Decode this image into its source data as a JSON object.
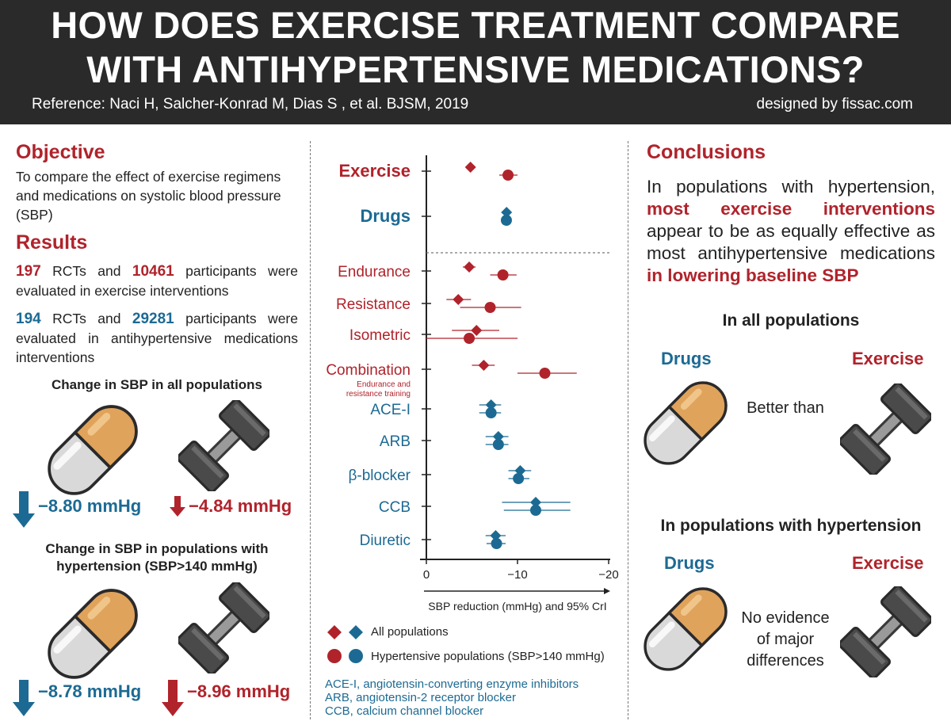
{
  "header": {
    "title_line1": "HOW DOES EXERCISE TREATMENT COMPARE",
    "title_line2": "WITH ANTIHYPERTENSIVE MEDICATIONS?",
    "reference": "Reference: Naci H, Salcher-Konrad M, Dias S , et al. BJSM, 2019",
    "designed_by": "designed by fissac.com"
  },
  "left": {
    "objective_title": "Objective",
    "objective_text": "To compare the effect of exercise regimens and medications on systolic blood pressure (SBP)",
    "results_title": "Results",
    "exercise_rcts": "197",
    "exercise_rcts_label": " RCTs and ",
    "exercise_participants": "10461",
    "exercise_text": " participants were evaluated in exercise interventions",
    "drug_rcts": "194",
    "drug_rcts_label": " RCTs and ",
    "drug_participants": "29281",
    "drug_text": " participants were evaluated in antihypertensive medications interventions",
    "all_pop_heading": "Change in SBP in all populations",
    "all_drug_value": "−8.80 mmHg",
    "all_exercise_value": "−4.84 mmHg",
    "htn_heading": "Change in SBP in populations with hypertension (SBP>140 mmHg)",
    "htn_drug_value": "−8.78 mmHg",
    "htn_exercise_value": "−8.96 mmHg"
  },
  "chart_data": {
    "type": "scatter",
    "title": "",
    "xlabel": "SBP reduction (mmHg) and 95% CrI",
    "xlim": [
      0,
      -20
    ],
    "xticks": [
      "0",
      "−10",
      "−20"
    ],
    "rows": [
      {
        "label": "Exercise",
        "group": "exercise",
        "bold": true,
        "all": -4.84,
        "all_ci": [
          -4.84,
          -4.84
        ],
        "htn": -8.96,
        "htn_ci": [
          -8.0,
          -10.0
        ]
      },
      {
        "label": "Drugs",
        "group": "drug",
        "bold": true,
        "all": -8.8,
        "all_ci": [
          -8.8,
          -8.8
        ],
        "htn": -8.78,
        "htn_ci": [
          -8.3,
          -9.3
        ]
      },
      {
        "label": "Endurance",
        "group": "exercise",
        "all": -4.7,
        "all_ci": [
          -4.0,
          -5.4
        ],
        "htn": -8.4,
        "htn_ci": [
          -7.0,
          -9.9
        ]
      },
      {
        "label": "Resistance",
        "group": "exercise",
        "all": -3.5,
        "all_ci": [
          -2.2,
          -4.9
        ],
        "htn": -7.0,
        "htn_ci": [
          -3.7,
          -10.4
        ]
      },
      {
        "label": "Isometric",
        "group": "exercise",
        "all": -5.5,
        "all_ci": [
          -2.8,
          -8.0
        ],
        "htn": -4.7,
        "htn_ci": [
          0.0,
          -10.0
        ]
      },
      {
        "label": "Combination",
        "sublabel": "Endurance and resistance training",
        "group": "exercise",
        "all": -6.3,
        "all_ci": [
          -5.0,
          -7.5
        ],
        "htn": -13.0,
        "htn_ci": [
          -10.0,
          -16.5
        ]
      },
      {
        "label": "ACE-I",
        "group": "drug",
        "all": -7.1,
        "all_ci": [
          -5.8,
          -8.2
        ],
        "htn": -7.1,
        "htn_ci": [
          -5.8,
          -8.2
        ]
      },
      {
        "label": "ARB",
        "group": "drug",
        "all": -7.9,
        "all_ci": [
          -6.5,
          -9.0
        ],
        "htn": -7.9,
        "htn_ci": [
          -6.5,
          -9.0
        ]
      },
      {
        "label": "β-blocker",
        "group": "drug",
        "all": -10.3,
        "all_ci": [
          -9.0,
          -11.5
        ],
        "htn": -10.1,
        "htn_ci": [
          -9.0,
          -11.3
        ]
      },
      {
        "label": "CCB",
        "group": "drug",
        "all": -12.0,
        "all_ci": [
          -8.3,
          -15.8
        ],
        "htn": -12.0,
        "htn_ci": [
          -8.5,
          -15.8
        ]
      },
      {
        "label": "Diuretic",
        "group": "drug",
        "all": -7.6,
        "all_ci": [
          -6.5,
          -8.7
        ],
        "htn": -7.7,
        "htn_ci": [
          -6.6,
          -8.7
        ]
      }
    ],
    "legend": [
      "All populations",
      "Hypertensive populations (SBP>140 mmHg)"
    ]
  },
  "abbreviations": [
    "ACE-I, angiotensin-converting enzyme inhibitors",
    "ARB, angiotensin-2 receptor blocker",
    "CCB, calcium channel blocker"
  ],
  "right": {
    "conclusions_title": "Conclusions",
    "text_1": "In populations with hypertension, ",
    "text_hl1": "most exercise interventions",
    "text_2": " appear to be as equally effective as most antihypertensive medications ",
    "text_hl2": "in lowering baseline SBP",
    "all_pop_heading": "In all populations",
    "drugs_label": "Drugs",
    "exercise_label": "Exercise",
    "better_than": "Better than",
    "htn_heading": "In populations with hypertension",
    "drugs_label2": "Drugs",
    "exercise_label2": "Exercise",
    "no_evidence": "No evidence of major differences"
  },
  "colors": {
    "red": "#b0232b",
    "blue": "#1c6a93",
    "header_bg": "#2b2a2b",
    "pill_orange": "#e0a35b",
    "pill_grey": "#d9d9d9",
    "dumbbell": "#4a4a4a"
  }
}
